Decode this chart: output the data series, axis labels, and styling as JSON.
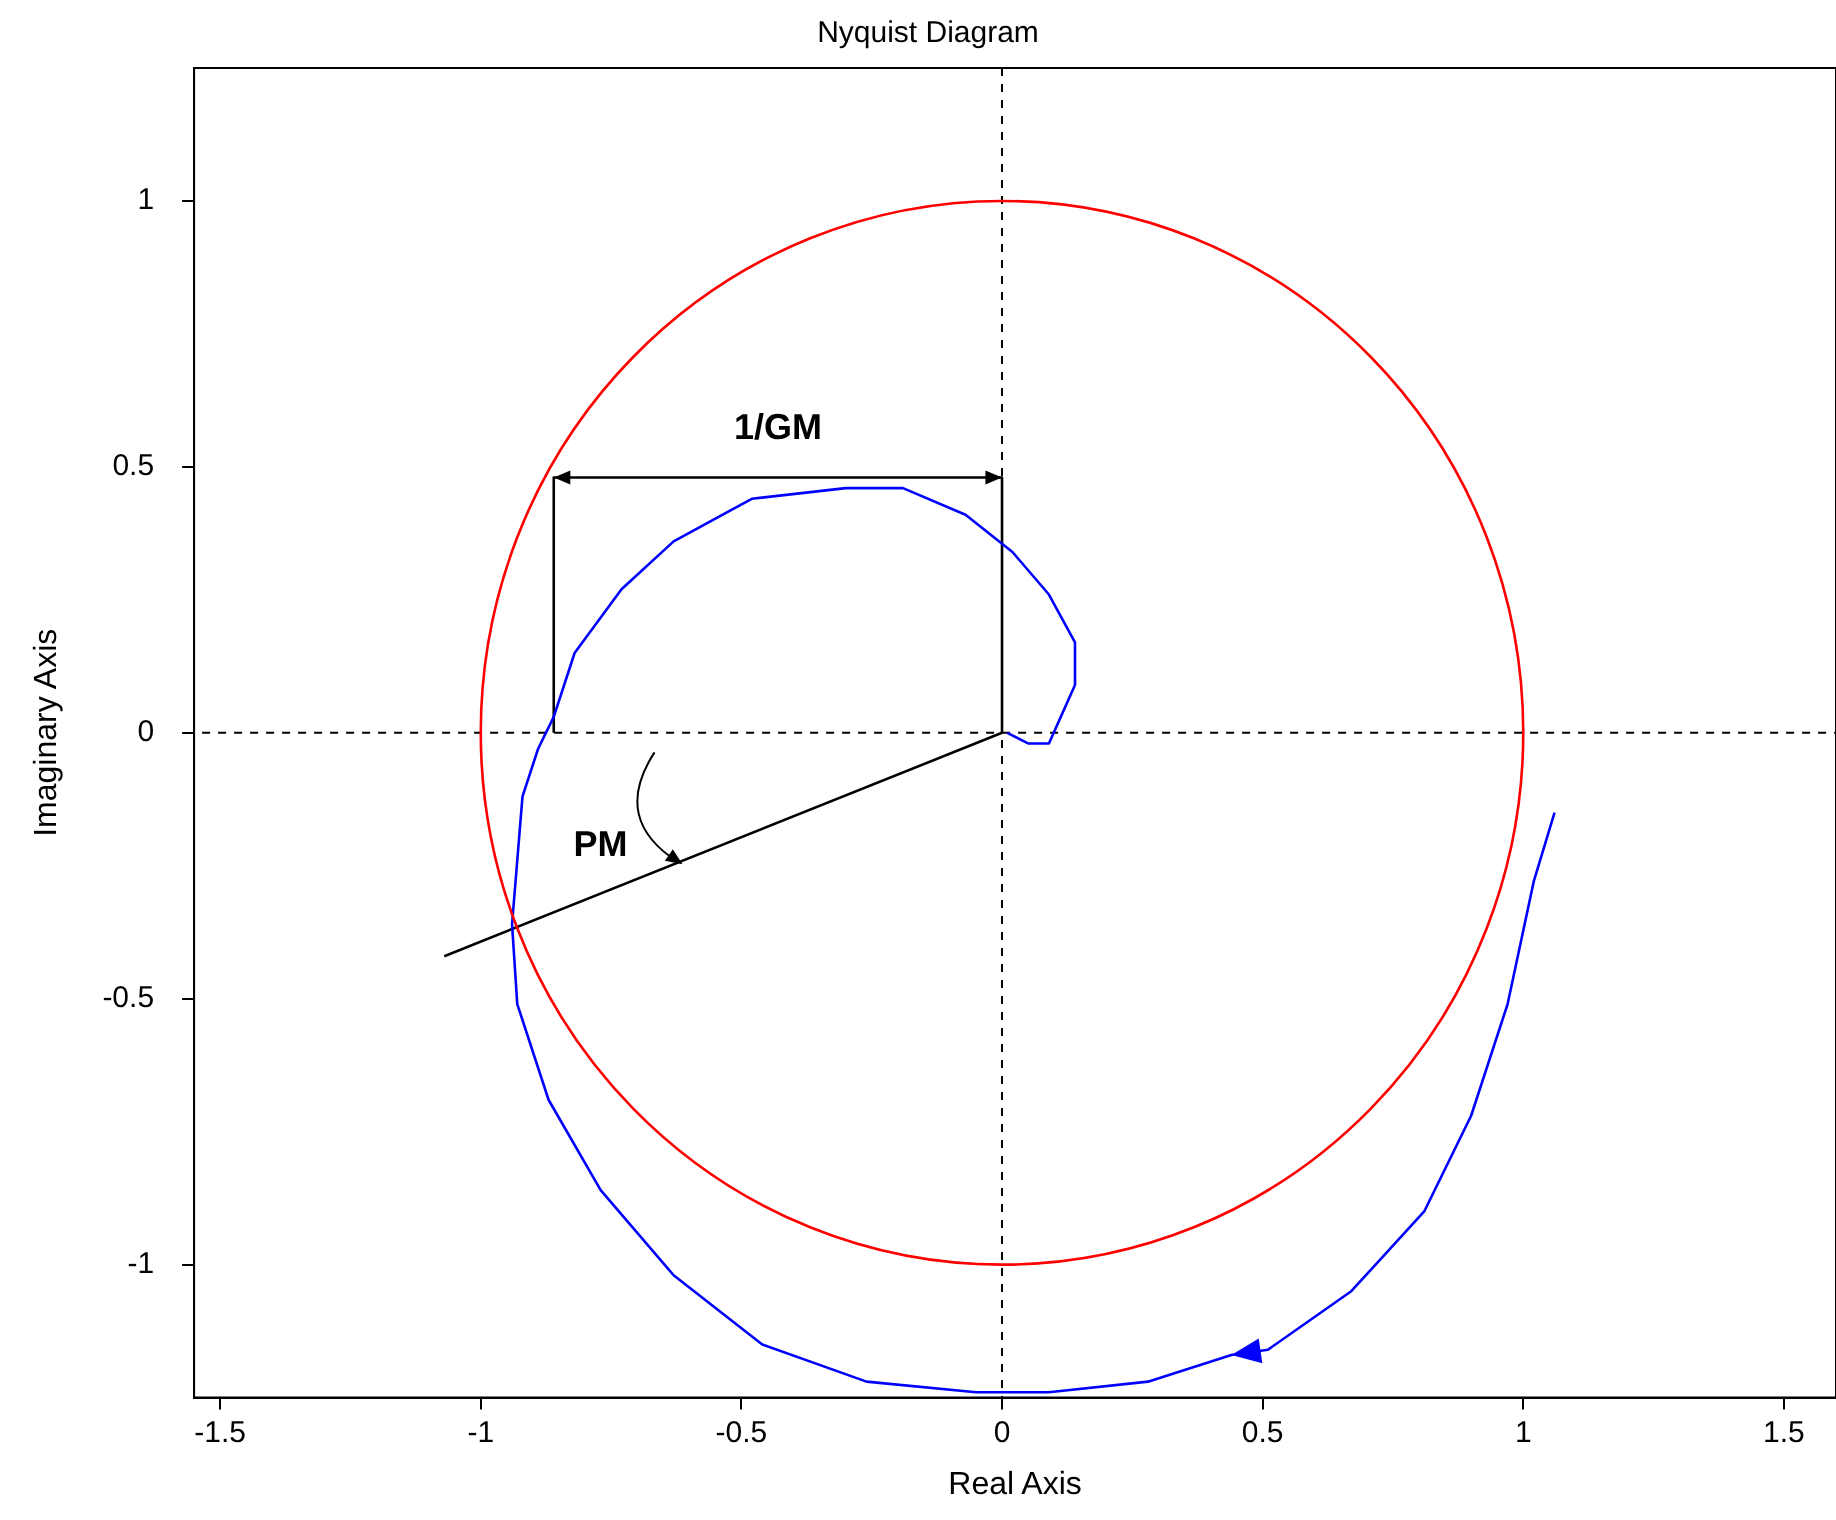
{
  "chart_data": {
    "type": "line",
    "title": "Nyquist Diagram",
    "xlabel": "Real Axis",
    "ylabel": "Imaginary Axis",
    "xlim": [
      -1.55,
      1.6
    ],
    "xticks": [
      -1.5,
      -1,
      -0.5,
      0,
      0.5,
      1,
      1.5
    ],
    "ylim": [
      -1.25,
      1.25
    ],
    "yticks": [
      -1,
      -0.5,
      0,
      0.5,
      1
    ],
    "grid": false,
    "legend": false,
    "marker": "none",
    "line_style": "solid",
    "series": [
      {
        "color": "#0000ff",
        "x": [
          1.06,
          1.02,
          0.97,
          0.9,
          0.81,
          0.67,
          0.51,
          0.44,
          0.28,
          0.09,
          -0.05,
          -0.26,
          -0.46,
          -0.63,
          -0.77,
          -0.87,
          -0.93,
          -0.94,
          -0.92,
          -0.89,
          -0.86,
          -0.82,
          -0.73,
          -0.63,
          -0.48,
          -0.3,
          -0.19,
          -0.07,
          0.02,
          0.09,
          0.14,
          0.14,
          0.09,
          0.05,
          0.01
        ],
        "values": [
          -0.15,
          -0.28,
          -0.51,
          -0.72,
          -0.9,
          -1.05,
          -1.16,
          -1.17,
          -1.22,
          -1.24,
          -1.24,
          -1.22,
          -1.15,
          -1.02,
          -0.86,
          -0.69,
          -0.51,
          -0.36,
          -0.12,
          -0.03,
          0.03,
          0.15,
          0.27,
          0.36,
          0.44,
          0.46,
          0.46,
          0.41,
          0.34,
          0.26,
          0.17,
          0.09,
          -0.02,
          -0.02,
          0
        ]
      },
      {
        "color": "#000000",
        "x": [
          -0.86,
          -0.86,
          0,
          0
        ],
        "values": [
          0,
          0.48,
          0.48,
          0
        ]
      },
      {
        "color": "#000000",
        "x": [
          0,
          -1.07
        ],
        "values": [
          0,
          -0.42
        ]
      }
    ],
    "ref_lines": [
      {
        "axis": "x",
        "value": 0,
        "color": "#000000",
        "line_style": "dashed"
      },
      {
        "axis": "y",
        "value": 0,
        "color": "#000000",
        "line_style": "dashed"
      }
    ],
    "annotations": [
      "1/GM",
      "PM"
    ]
  }
}
